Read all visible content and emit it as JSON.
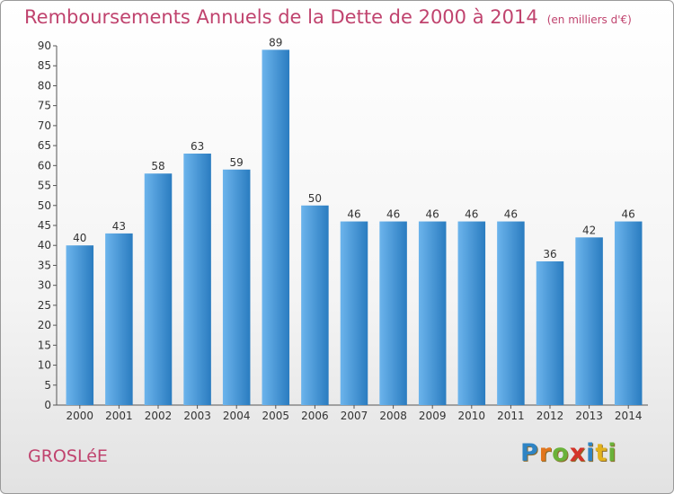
{
  "title": "Remboursements Annuels de la Dette de 2000 à 2014",
  "unit": "(en milliers d'€)",
  "commune": "GROSLéE",
  "brand": {
    "letters": [
      "P",
      "r",
      "o",
      "x",
      "i",
      "t",
      "i"
    ],
    "colors": [
      "#2f84c4",
      "#e2761d",
      "#6ab23a",
      "#d4342a",
      "#2f84c4",
      "#e2b21d",
      "#6ab23a"
    ]
  },
  "colors": {
    "bar_light": "#6cb4ec",
    "bar_dark": "#2a7cc0",
    "text_accent": "#c0436e"
  },
  "chart_data": {
    "type": "bar",
    "categories": [
      "2000",
      "2001",
      "2002",
      "2003",
      "2004",
      "2005",
      "2006",
      "2007",
      "2008",
      "2009",
      "2010",
      "2011",
      "2012",
      "2013",
      "2014"
    ],
    "values": [
      40,
      43,
      58,
      63,
      59,
      89,
      50,
      46,
      46,
      46,
      46,
      46,
      36,
      42,
      46
    ],
    "title": "Remboursements Annuels de la Dette de 2000 à 2014",
    "xlabel": "",
    "ylabel": "",
    "ylim": [
      0,
      90
    ],
    "yticks": [
      0,
      5,
      10,
      15,
      20,
      25,
      30,
      35,
      40,
      45,
      50,
      55,
      60,
      65,
      70,
      75,
      80,
      85,
      90
    ],
    "grid": false,
    "legend": "none"
  }
}
